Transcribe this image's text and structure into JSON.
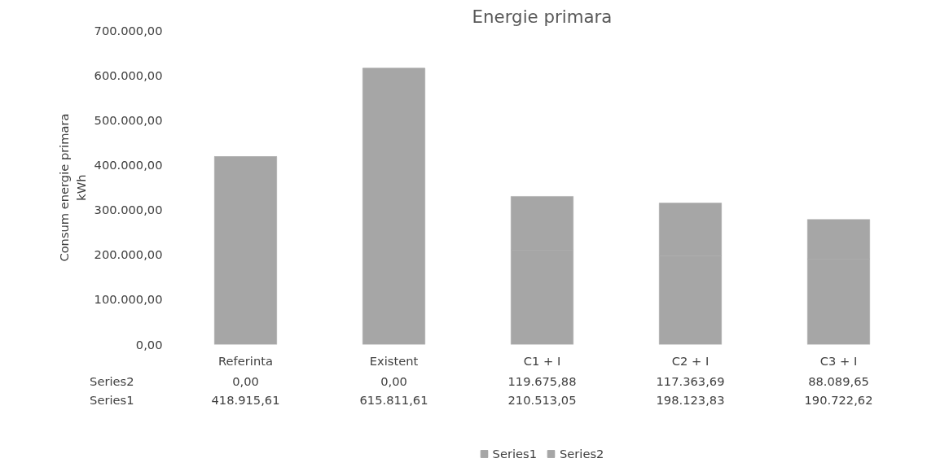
{
  "chart_data": {
    "type": "bar",
    "stacked": true,
    "title": "Energie primara",
    "ylabel": "Consum energie primara\nkWh",
    "categories": [
      "Referinta",
      "Existent",
      "C1 + I",
      "C2 + I",
      "C3 + I"
    ],
    "series": [
      {
        "name": "Series1",
        "color": "#a6a6a6",
        "values": [
          418915.61,
          615811.61,
          210513.05,
          198123.83,
          190722.62
        ],
        "value_labels": [
          "418.915,61",
          "615.811,61",
          "210.513,05",
          "198.123,83",
          "190.722,62"
        ]
      },
      {
        "name": "Series2",
        "color": "#a6a6a6",
        "values": [
          0,
          0,
          119675.88,
          117363.69,
          88089.65
        ],
        "value_labels": [
          "0,00",
          "0,00",
          "119.675,88",
          "117.363,69",
          "88.089,65"
        ]
      }
    ],
    "ylim": [
      0,
      700000
    ],
    "yticks": [
      {
        "value": 0,
        "label": "0,00"
      },
      {
        "value": 100000,
        "label": "100.000,00"
      },
      {
        "value": 200000,
        "label": "200.000,00"
      },
      {
        "value": 300000,
        "label": "300.000,00"
      },
      {
        "value": 400000,
        "label": "400.000,00"
      },
      {
        "value": 500000,
        "label": "500.000,00"
      },
      {
        "value": 600000,
        "label": "600.000,00"
      },
      {
        "value": 700000,
        "label": "700.000,00"
      }
    ],
    "grid": false,
    "legend": "bottom"
  }
}
